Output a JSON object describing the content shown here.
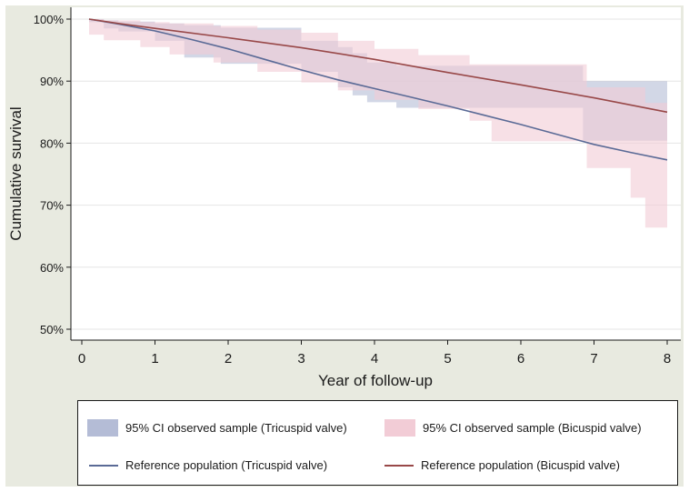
{
  "chart_data": {
    "type": "line",
    "title": "",
    "xlabel": "Year of follow-up",
    "ylabel": "Cumulative survival",
    "xlim": [
      0,
      8
    ],
    "ylim": [
      50,
      100
    ],
    "xticks": [
      0,
      1,
      2,
      3,
      4,
      5,
      6,
      7,
      8
    ],
    "xtick_labels": [
      "0",
      "1",
      "2",
      "3",
      "4",
      "5",
      "6",
      "7",
      "8"
    ],
    "yticks": [
      50,
      60,
      70,
      80,
      90,
      100
    ],
    "ytick_labels": [
      "50%",
      "60%",
      "70%",
      "80%",
      "90%",
      "100%"
    ],
    "grid": true,
    "colors": {
      "tri_band": "#b4bcd6",
      "bi_band": "#f2ccd6",
      "tri_line": "#5a6a96",
      "bi_line": "#984848"
    },
    "bands": [
      {
        "name": "95% CI observed sample (Tricuspid valve)",
        "color_key": "tri_band",
        "x": [
          0.1,
          0.3,
          0.3,
          0.5,
          0.5,
          1.0,
          1.0,
          1.4,
          1.4,
          1.9,
          1.9,
          3.0,
          3.0,
          3.5,
          3.5,
          3.7,
          3.7,
          3.9,
          3.9,
          4.3,
          4.3,
          4.7,
          4.7,
          5.2,
          5.2,
          6.0,
          6.0,
          6.85,
          6.85,
          7.6,
          7.6,
          8.0
        ],
        "upper": [
          100,
          100,
          99.8,
          99.8,
          99.6,
          99.6,
          99.3,
          99.3,
          99.0,
          99.0,
          98.6,
          98.6,
          96.5,
          96.5,
          95.5,
          95.5,
          94.5,
          94.5,
          93.0,
          93.0,
          92.5,
          92.5,
          92.5,
          92.5,
          92.5,
          92.5,
          92.5,
          92.5,
          90.0,
          90.0,
          90.0,
          90.0
        ],
        "lower": [
          99.5,
          99.5,
          98.5,
          98.5,
          98.0,
          98.0,
          96.5,
          96.5,
          93.8,
          93.8,
          92.8,
          92.8,
          91.5,
          91.5,
          89.0,
          89.0,
          87.7,
          87.7,
          86.6,
          86.6,
          85.7,
          85.7,
          85.7,
          85.7,
          85.7,
          85.7,
          85.7,
          85.7,
          80.4,
          80.4,
          80.4,
          80.4
        ]
      },
      {
        "name": "95% CI observed sample (Bicuspid valve)",
        "color_key": "bi_band",
        "x": [
          0.1,
          0.3,
          0.3,
          0.8,
          0.8,
          1.2,
          1.2,
          1.8,
          1.8,
          2.4,
          2.4,
          3.0,
          3.0,
          3.5,
          3.5,
          4.0,
          4.0,
          4.6,
          4.6,
          5.3,
          5.3,
          5.6,
          5.6,
          6.0,
          6.0,
          6.9,
          6.9,
          7.5,
          7.5,
          7.7,
          7.7,
          8.0
        ],
        "upper": [
          100,
          100,
          99.8,
          99.8,
          99.5,
          99.5,
          99.3,
          99.3,
          98.9,
          98.9,
          98.3,
          98.3,
          97.8,
          97.8,
          96.5,
          96.5,
          95.2,
          95.2,
          94.2,
          94.2,
          92.7,
          92.7,
          92.7,
          92.7,
          92.7,
          92.7,
          89.0,
          89.0,
          89.0,
          89.0,
          86.5,
          86.5
        ],
        "lower": [
          97.5,
          97.5,
          96.6,
          96.6,
          95.5,
          95.5,
          94.3,
          94.3,
          93.0,
          93.0,
          91.5,
          91.5,
          89.8,
          89.8,
          88.5,
          88.5,
          87.0,
          87.0,
          85.5,
          85.5,
          83.6,
          83.6,
          80.3,
          80.3,
          80.3,
          80.3,
          76.0,
          76.0,
          71.2,
          71.2,
          66.4,
          66.4
        ]
      }
    ],
    "series": [
      {
        "name": "Reference population (Tricuspid valve)",
        "color_key": "tri_line",
        "x": [
          0.1,
          0.5,
          1,
          1.5,
          2,
          2.5,
          3,
          3.5,
          4,
          4.5,
          5,
          5.5,
          6,
          6.5,
          7,
          7.5,
          8
        ],
        "y": [
          100,
          99.2,
          98.1,
          96.7,
          95.2,
          93.5,
          91.8,
          90.2,
          88.8,
          87.4,
          86.0,
          84.5,
          83.0,
          81.4,
          79.8,
          78.5,
          77.3
        ]
      },
      {
        "name": "Reference population (Bicuspid valve)",
        "color_key": "bi_line",
        "x": [
          0.1,
          0.5,
          1,
          2,
          3,
          4,
          5,
          6,
          7,
          8
        ],
        "y": [
          100,
          99.3,
          98.5,
          97.0,
          95.4,
          93.5,
          91.4,
          89.4,
          87.3,
          85.0
        ]
      }
    ],
    "legend": {
      "tri_band": "95% CI observed sample (Tricuspid valve)",
      "bi_band": "95% CI observed sample (Bicuspid valve)",
      "tri_line": "Reference population (Tricuspid valve)",
      "bi_line": "Reference population (Bicuspid valve)"
    }
  }
}
